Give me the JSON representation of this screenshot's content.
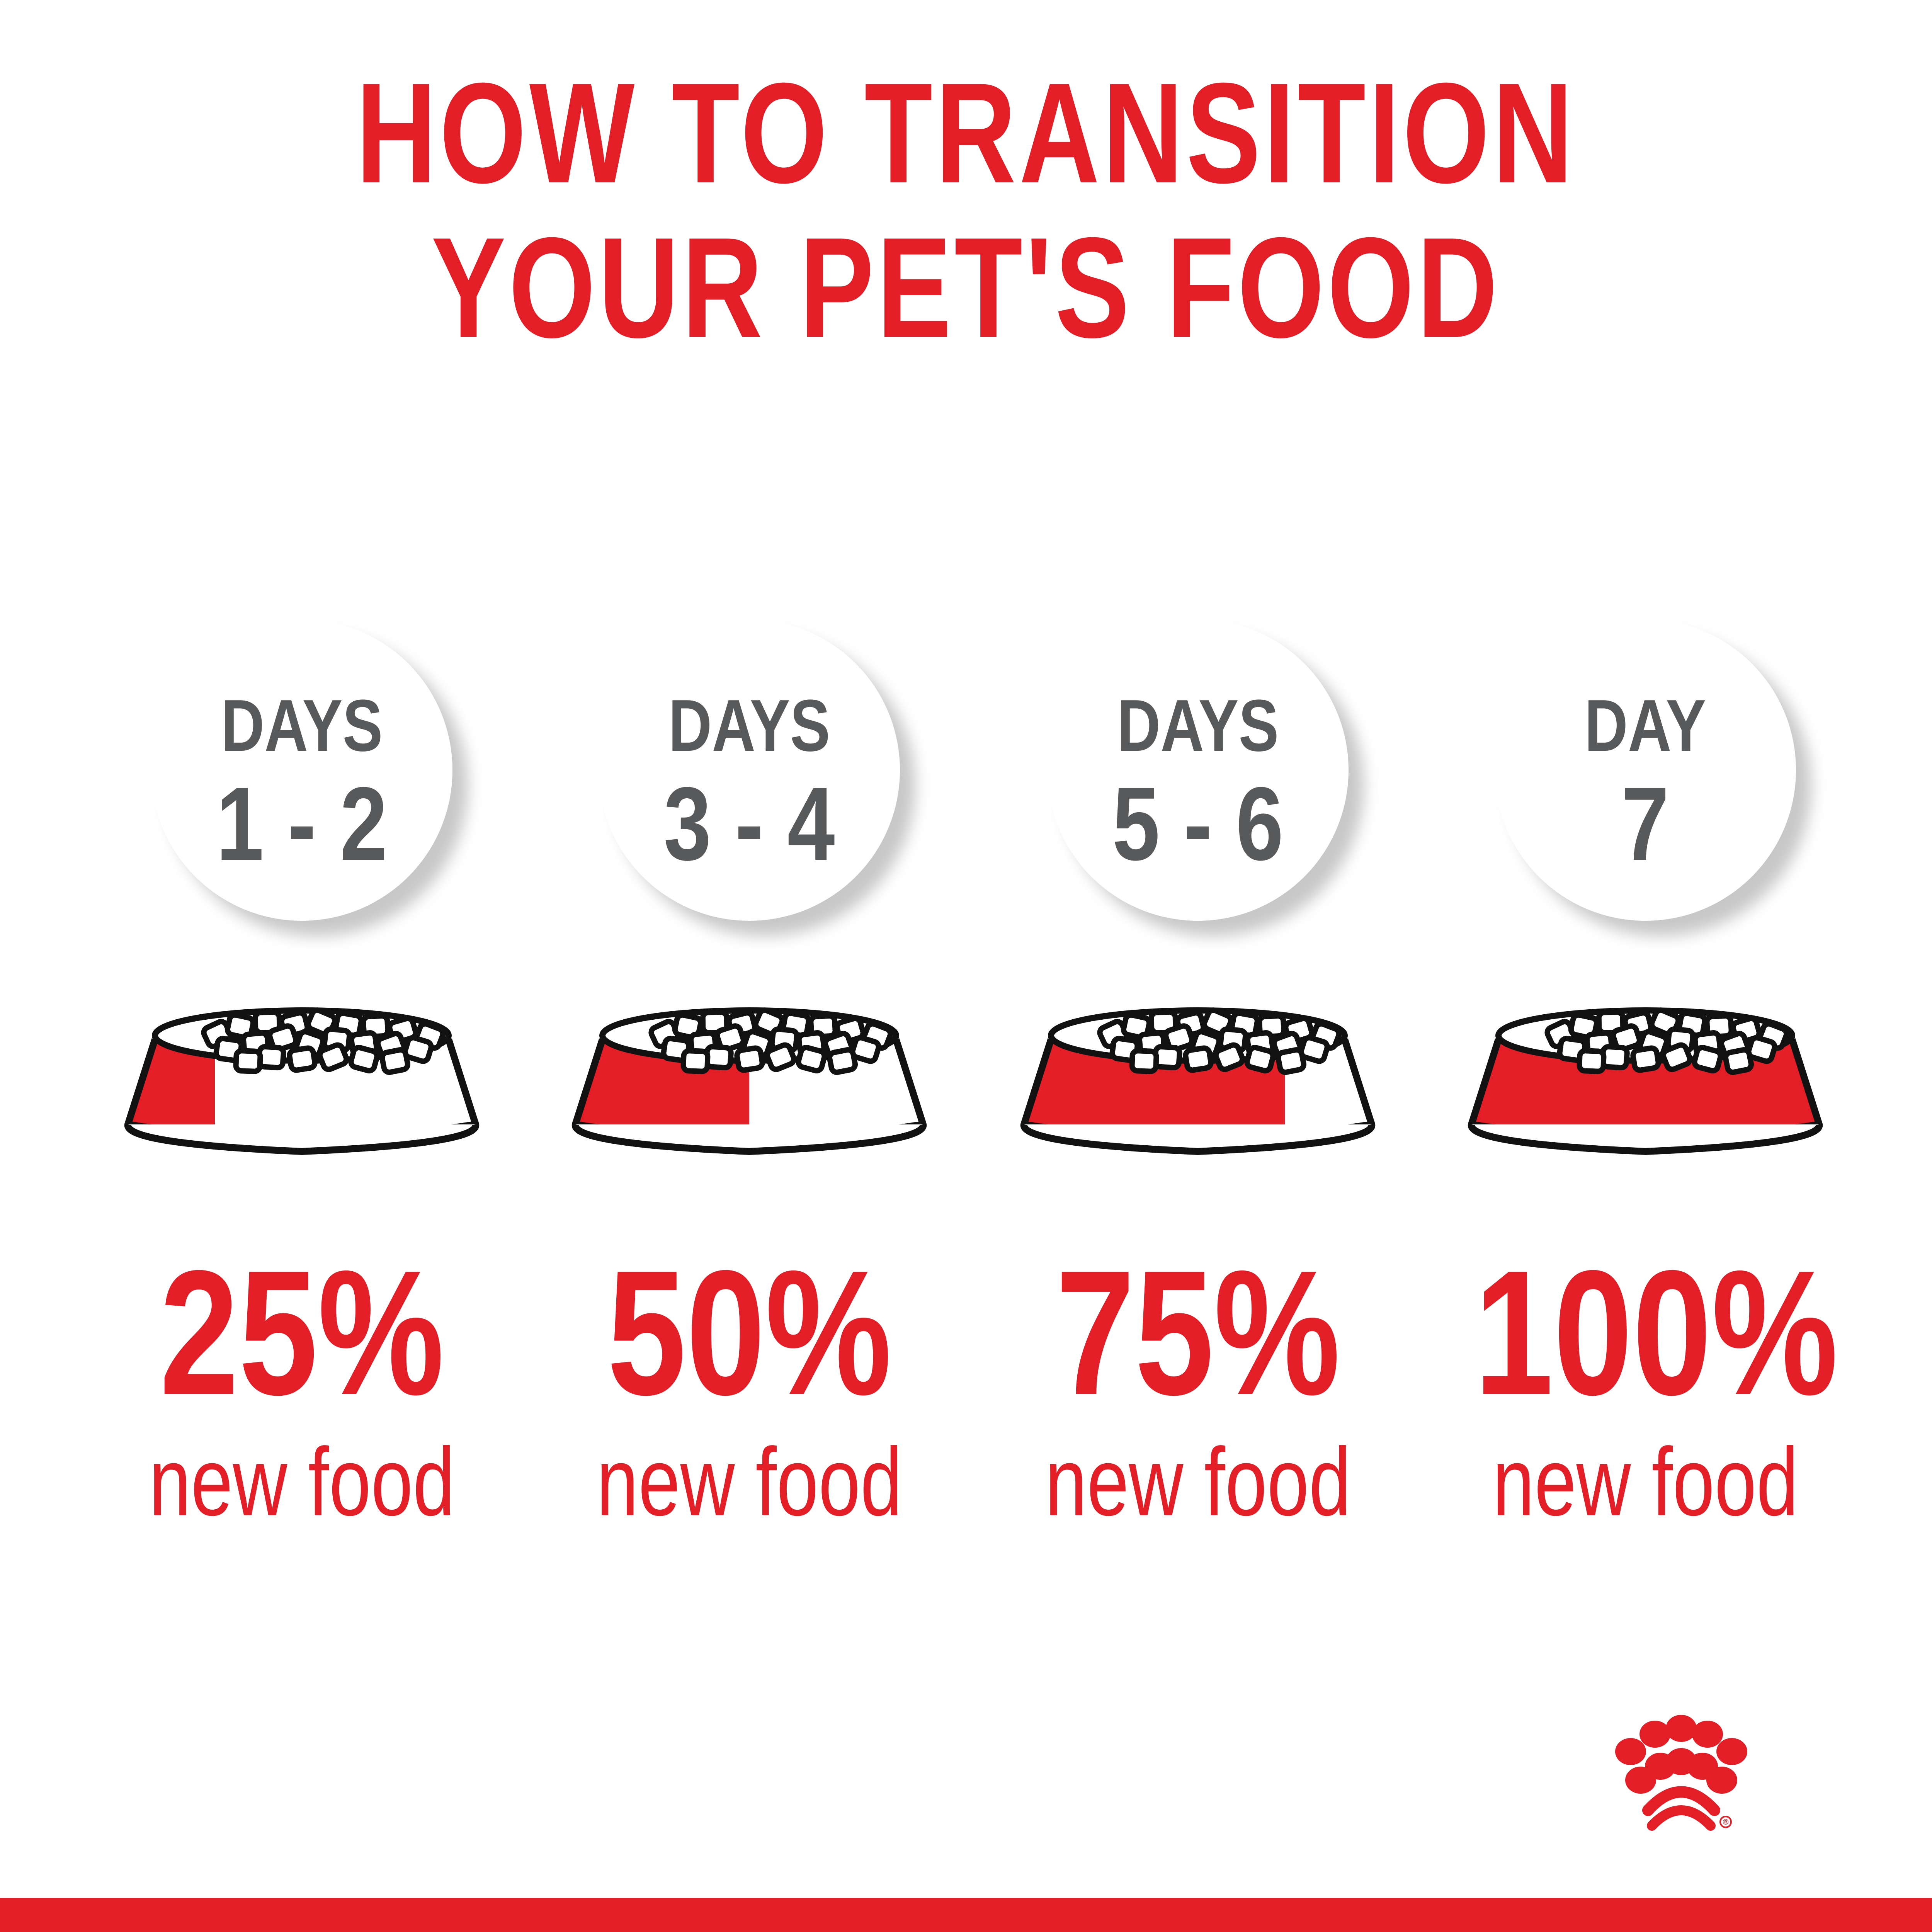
{
  "title": {
    "line1": "HOW TO TRANSITION",
    "line2": "YOUR PET'S FOOD"
  },
  "colors": {
    "brand_red": "#e31e26",
    "text_gray": "#58595b",
    "outline": "#111111"
  },
  "steps": [
    {
      "label": "DAYS",
      "range": "1 - 2",
      "percent": "25%",
      "caption": "new food",
      "new_food_fraction": 0.25
    },
    {
      "label": "DAYS",
      "range": "3 - 4",
      "percent": "50%",
      "caption": "new food",
      "new_food_fraction": 0.5
    },
    {
      "label": "DAYS",
      "range": "5 - 6",
      "percent": "75%",
      "caption": "new food",
      "new_food_fraction": 0.75
    },
    {
      "label": "DAY",
      "range": "7",
      "percent": "100%",
      "caption": "new food",
      "new_food_fraction": 1.0
    }
  ],
  "logo": {
    "icon": "paw-crown-logo-icon",
    "mark": "®"
  }
}
